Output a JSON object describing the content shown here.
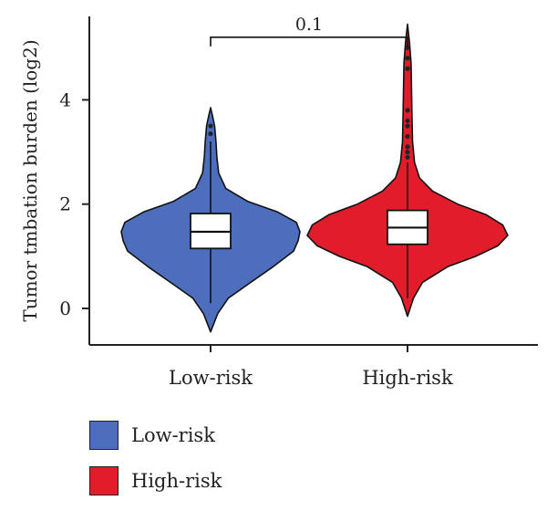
{
  "chart_data": {
    "type": "violin",
    "ylabel": "Tumor tmbation burden (log2)",
    "xlabel": "",
    "ylim": [
      -0.7,
      5.6
    ],
    "yticks": [
      0,
      2,
      4
    ],
    "categories": [
      "Low-risk",
      "High-risk"
    ],
    "groups": [
      {
        "name": "Low-risk",
        "color": "#4c6ebd",
        "min": -0.45,
        "max": 3.85,
        "q1": 1.15,
        "median": 1.47,
        "q3": 1.82,
        "whisker_low": 0.1,
        "whisker_high": 3.2,
        "outliers": [
          3.35,
          3.5
        ],
        "density": [
          [
            -0.45,
            0.0
          ],
          [
            -0.1,
            0.08
          ],
          [
            0.2,
            0.2
          ],
          [
            0.5,
            0.45
          ],
          [
            0.8,
            0.7
          ],
          [
            1.1,
            0.93
          ],
          [
            1.3,
            0.98
          ],
          [
            1.47,
            1.0
          ],
          [
            1.65,
            0.96
          ],
          [
            1.85,
            0.75
          ],
          [
            2.05,
            0.42
          ],
          [
            2.3,
            0.17
          ],
          [
            2.6,
            0.09
          ],
          [
            2.9,
            0.07
          ],
          [
            3.2,
            0.06
          ],
          [
            3.5,
            0.045
          ],
          [
            3.7,
            0.02
          ],
          [
            3.85,
            0.0
          ]
        ]
      },
      {
        "name": "High-risk",
        "color": "#e11d2b",
        "min": -0.15,
        "max": 5.45,
        "q1": 1.23,
        "median": 1.55,
        "q3": 1.88,
        "whisker_low": 0.2,
        "whisker_high": 2.8,
        "outliers": [
          2.9,
          3.0,
          3.1,
          3.3,
          3.5,
          3.6,
          3.8,
          4.6,
          4.8,
          5.0
        ],
        "density": [
          [
            -0.15,
            0.0
          ],
          [
            0.2,
            0.06
          ],
          [
            0.5,
            0.15
          ],
          [
            0.8,
            0.4
          ],
          [
            1.0,
            0.68
          ],
          [
            1.2,
            0.9
          ],
          [
            1.4,
            1.0
          ],
          [
            1.6,
            0.95
          ],
          [
            1.8,
            0.78
          ],
          [
            2.0,
            0.5
          ],
          [
            2.25,
            0.25
          ],
          [
            2.5,
            0.12
          ],
          [
            2.8,
            0.07
          ],
          [
            3.2,
            0.05
          ],
          [
            3.7,
            0.045
          ],
          [
            4.2,
            0.04
          ],
          [
            4.7,
            0.035
          ],
          [
            5.1,
            0.02
          ],
          [
            5.45,
            0.0
          ]
        ]
      }
    ],
    "annotation": {
      "text": "0.1",
      "y": 5.2,
      "between": [
        "Low-risk",
        "High-risk"
      ]
    },
    "legend": {
      "position": "bottom-left",
      "items": [
        {
          "label": "Low-risk",
          "color": "#4c6ebd"
        },
        {
          "label": "High-risk",
          "color": "#e11d2b"
        }
      ]
    }
  }
}
